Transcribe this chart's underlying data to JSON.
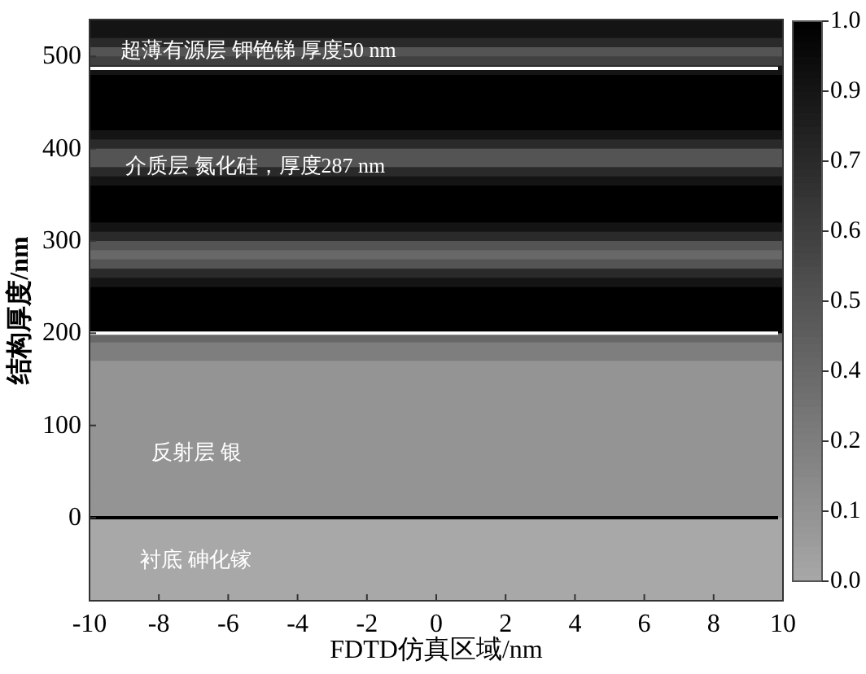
{
  "chart_data": {
    "type": "heatmap",
    "xlabel": "FDTD仿真区域/nm",
    "ylabel": "结构厚度/nm",
    "xlim": [
      -10,
      10
    ],
    "xticks": [
      -10,
      -8,
      -6,
      -4,
      -2,
      0,
      2,
      4,
      6,
      8,
      10
    ],
    "ylim": [
      -90,
      540
    ],
    "yticks": [
      0,
      100,
      200,
      300,
      400,
      500
    ],
    "y": [
      535,
      525,
      515,
      505,
      495,
      485,
      475,
      465,
      455,
      445,
      435,
      425,
      415,
      405,
      395,
      385,
      375,
      365,
      355,
      345,
      335,
      325,
      315,
      305,
      295,
      285,
      275,
      265,
      255,
      245,
      235,
      225,
      215,
      205,
      195,
      185,
      175,
      165,
      155,
      145,
      135,
      125,
      115,
      105,
      95,
      85,
      75,
      65,
      55,
      45,
      35,
      25,
      15,
      5,
      -5,
      -15,
      -25,
      -35,
      -45,
      -55,
      -65,
      -75,
      -85
    ],
    "cells": [
      [
        0.88
      ],
      [
        0.88
      ],
      [
        0.75
      ],
      [
        0.5
      ],
      [
        0.62
      ],
      [
        0.88
      ],
      [
        1.0
      ],
      [
        1.0
      ],
      [
        1.0
      ],
      [
        1.0
      ],
      [
        1.0
      ],
      [
        1.0
      ],
      [
        0.88
      ],
      [
        0.75
      ],
      [
        0.5
      ],
      [
        0.5
      ],
      [
        0.75
      ],
      [
        0.88
      ],
      [
        1.0
      ],
      [
        1.0
      ],
      [
        1.0
      ],
      [
        1.0
      ],
      [
        0.88
      ],
      [
        0.75
      ],
      [
        0.5
      ],
      [
        0.38
      ],
      [
        0.5
      ],
      [
        0.75
      ],
      [
        0.88
      ],
      [
        1.0
      ],
      [
        1.0
      ],
      [
        1.0
      ],
      [
        1.0
      ],
      [
        1.0
      ],
      [
        0.38
      ],
      [
        0.25
      ],
      [
        0.25
      ],
      [
        0.12
      ],
      [
        0.12
      ],
      [
        0.12
      ],
      [
        0.12
      ],
      [
        0.12
      ],
      [
        0.12
      ],
      [
        0.12
      ],
      [
        0.12
      ],
      [
        0.12
      ],
      [
        0.12
      ],
      [
        0.12
      ],
      [
        0.12
      ],
      [
        0.12
      ],
      [
        0.12
      ],
      [
        0.12
      ],
      [
        0.12
      ],
      [
        0.12
      ],
      [
        0.0
      ],
      [
        0.0
      ],
      [
        0.0
      ],
      [
        0.0
      ],
      [
        0.0
      ],
      [
        0.0
      ],
      [
        0.0
      ],
      [
        0.0
      ],
      [
        0.0
      ]
    ],
    "colors": [
      "#a8a8a8",
      "#000000"
    ],
    "clim": [
      0.0,
      1.0
    ],
    "cticks": [
      {
        "value": 0.0,
        "label": "0.0"
      },
      {
        "value": 0.125,
        "label": "0.1"
      },
      {
        "value": 0.25,
        "label": "0.2"
      },
      {
        "value": 0.375,
        "label": "0.4"
      },
      {
        "value": 0.5,
        "label": "0.5"
      },
      {
        "value": 0.625,
        "label": "0.6"
      },
      {
        "value": 0.75,
        "label": "0.7"
      },
      {
        "value": 0.875,
        "label": "0.9"
      },
      {
        "value": 1.0,
        "label": "1.0"
      }
    ],
    "ref_lines": [
      {
        "axis": "y",
        "value": 487,
        "color": "#ffffff"
      },
      {
        "axis": "y",
        "value": 200,
        "color": "#ffffff"
      },
      {
        "axis": "y",
        "value": 0,
        "color": "#000000"
      }
    ],
    "annotations": [
      "超薄有源层  钾铯锑  厚度50 nm",
      "介质层  氮化硅，厚度287 nm",
      "反射层  银",
      "衬底  砷化镓"
    ]
  }
}
